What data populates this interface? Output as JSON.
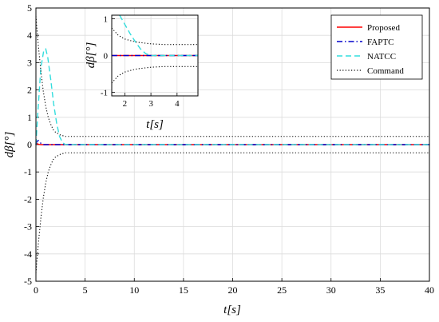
{
  "chart_data": [
    {
      "type": "line",
      "xlabel": "t[s]",
      "ylabel": "dβ[°]",
      "xlim": [
        0,
        40
      ],
      "ylim": [
        -5,
        5
      ],
      "xticks": [
        0,
        5,
        10,
        15,
        20,
        25,
        30,
        35,
        40
      ],
      "yticks": [
        -5,
        -4,
        -3,
        -2,
        -1,
        0,
        1,
        2,
        3,
        4,
        5
      ],
      "grid": true,
      "legend_position": "top-right",
      "series": [
        {
          "name": "Proposed",
          "color": "#ff0000",
          "style": "solid",
          "x": [
            0,
            0.05,
            0.15,
            0.3,
            0.5,
            40
          ],
          "y": [
            0,
            0.05,
            0.03,
            0.01,
            0,
            0
          ]
        },
        {
          "name": "FAPTC",
          "color": "#0000cc",
          "style": "dashdot",
          "x": [
            0,
            0.1,
            0.25,
            0.5,
            0.8,
            40
          ],
          "y": [
            0,
            0.12,
            0.15,
            0.05,
            0,
            0
          ]
        },
        {
          "name": "NATCC",
          "color": "#33dddd",
          "style": "dashed",
          "x": [
            0,
            0.2,
            0.5,
            0.8,
            1.0,
            1.2,
            1.5,
            1.8,
            2.1,
            2.4,
            2.7,
            3.0,
            40
          ],
          "y": [
            0,
            1.2,
            2.8,
            3.45,
            3.5,
            3.2,
            2.4,
            1.5,
            0.8,
            0.3,
            0.08,
            0,
            0
          ]
        },
        {
          "name": "Command",
          "color": "#000000",
          "style": "dotted",
          "x": [
            0,
            0.25,
            0.5,
            0.75,
            1.0,
            1.25,
            1.5,
            1.75,
            2.0,
            2.5,
            3.0,
            4.0,
            40
          ],
          "y": [
            4.7,
            3.6,
            2.7,
            1.95,
            1.4,
            1.0,
            0.75,
            0.55,
            0.45,
            0.35,
            0.3,
            0.3,
            0.3
          ]
        },
        {
          "name": "",
          "color": "#000000",
          "style": "dotted",
          "x": [
            0,
            0.25,
            0.5,
            0.75,
            1.0,
            1.25,
            1.5,
            1.75,
            2.0,
            2.5,
            3.0,
            4.0,
            40
          ],
          "y": [
            -4.7,
            -3.6,
            -2.7,
            -1.95,
            -1.4,
            -1.0,
            -0.75,
            -0.55,
            -0.45,
            -0.35,
            -0.3,
            -0.3,
            -0.3
          ]
        }
      ]
    },
    {
      "type": "line",
      "xlabel": "t[s]",
      "ylabel": "dβ[°]",
      "xlim": [
        1.5,
        4.8
      ],
      "ylim": [
        -1.1,
        1.1
      ],
      "xticks": [
        2,
        3,
        4
      ],
      "yticks": [
        -1,
        0,
        1
      ],
      "grid": true,
      "series": [
        {
          "name": "Proposed",
          "color": "#ff0000",
          "style": "solid",
          "x": [
            1.5,
            4.8
          ],
          "y": [
            0,
            0
          ]
        },
        {
          "name": "FAPTC",
          "color": "#0000cc",
          "style": "dashdot",
          "x": [
            1.5,
            4.8
          ],
          "y": [
            0,
            0
          ]
        },
        {
          "name": "NATCC",
          "color": "#33dddd",
          "style": "dashed",
          "x": [
            1.8,
            2.0,
            2.2,
            2.4,
            2.6,
            2.8,
            3.0,
            4.8
          ],
          "y": [
            1.1,
            0.85,
            0.6,
            0.38,
            0.18,
            0.05,
            0,
            0
          ]
        },
        {
          "name": "Command",
          "color": "#000000",
          "style": "dotted",
          "x": [
            1.5,
            1.75,
            2.0,
            2.25,
            2.5,
            3.0,
            3.5,
            4.8
          ],
          "y": [
            0.75,
            0.55,
            0.45,
            0.4,
            0.36,
            0.32,
            0.3,
            0.3
          ]
        },
        {
          "name": "",
          "color": "#000000",
          "style": "dotted",
          "x": [
            1.5,
            1.75,
            2.0,
            2.25,
            2.5,
            3.0,
            3.5,
            4.8
          ],
          "y": [
            -0.75,
            -0.55,
            -0.45,
            -0.4,
            -0.36,
            -0.32,
            -0.3,
            -0.3
          ]
        }
      ]
    }
  ]
}
